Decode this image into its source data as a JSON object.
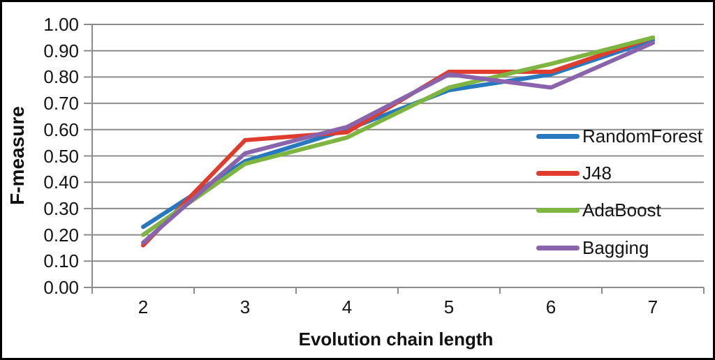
{
  "chart_data": {
    "type": "line",
    "title": "",
    "xlabel": "Evolution chain length",
    "ylabel": "F-measure",
    "x": [
      2,
      3,
      4,
      5,
      6,
      7
    ],
    "series": [
      {
        "name": "RandomForest",
        "color": "#2778BE",
        "values": [
          0.23,
          0.48,
          0.6,
          0.75,
          0.81,
          0.94
        ]
      },
      {
        "name": "J48",
        "color": "#E03C2D",
        "values": [
          0.16,
          0.56,
          0.59,
          0.82,
          0.82,
          0.95
        ]
      },
      {
        "name": "AdaBoost",
        "color": "#7EB440",
        "values": [
          0.2,
          0.47,
          0.57,
          0.76,
          0.85,
          0.95
        ]
      },
      {
        "name": "Bagging",
        "color": "#8A63AD",
        "values": [
          0.17,
          0.51,
          0.61,
          0.81,
          0.76,
          0.93
        ]
      }
    ],
    "ylim": [
      0.0,
      1.0
    ],
    "ytick_step": 0.1,
    "ytick_labels": [
      "0.00",
      "0.10",
      "0.20",
      "0.30",
      "0.40",
      "0.50",
      "0.60",
      "0.70",
      "0.80",
      "0.90",
      "1.00"
    ],
    "xtick_labels": [
      "2",
      "3",
      "4",
      "5",
      "6",
      "7"
    ],
    "grid": "horizontal",
    "legend_position": "inside-right"
  },
  "colors": {
    "grid": "#8C8C8C",
    "axis": "#8C8C8C",
    "text": "#151515",
    "border": "#000000",
    "background": "#FFFFFF"
  }
}
